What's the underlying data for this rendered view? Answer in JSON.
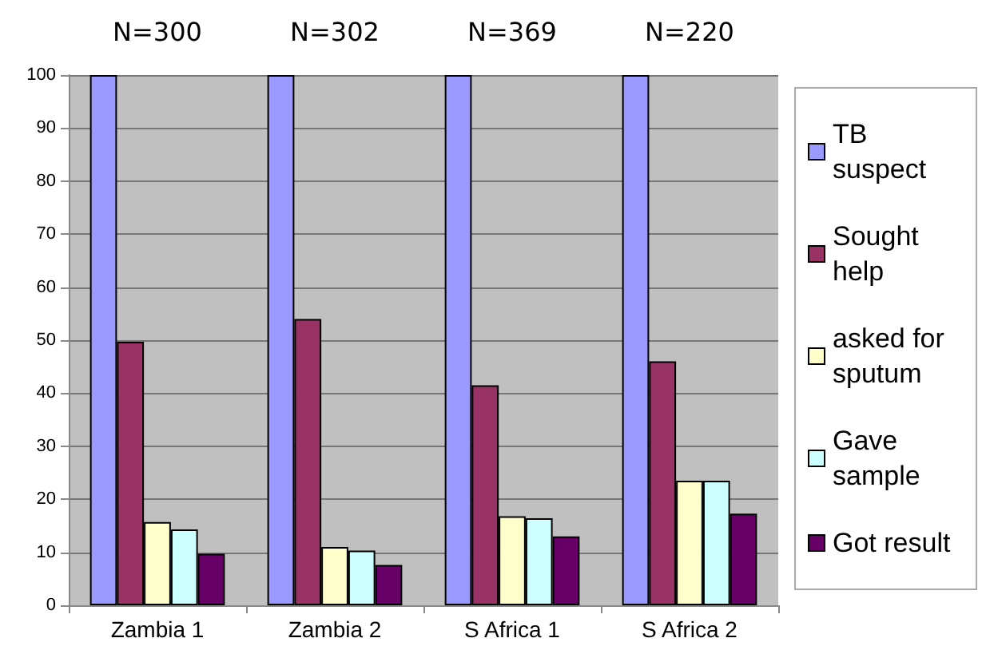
{
  "chart_data": {
    "type": "bar",
    "categories": [
      "Zambia 1",
      "Zambia 2",
      "S Africa 1",
      "S Africa 2"
    ],
    "series": [
      {
        "name": "TB suspect",
        "color": "#9999ff",
        "values": [
          100,
          100,
          100,
          100
        ]
      },
      {
        "name": "Sought help",
        "color": "#993366",
        "values": [
          49.7,
          54,
          41.5,
          46
        ]
      },
      {
        "name": "asked for sputum",
        "color": "#ffffcc",
        "values": [
          15.7,
          11,
          16.8,
          23.5
        ]
      },
      {
        "name": "Gave sample",
        "color": "#ccffff",
        "values": [
          14.3,
          10.3,
          16.4,
          23.5
        ]
      },
      {
        "name": "Got result",
        "color": "#660066",
        "values": [
          9.7,
          7.6,
          13,
          17.3
        ]
      }
    ],
    "annotations": [
      "N=300",
      "N=302",
      "N=369",
      "N=220"
    ],
    "ylim": [
      0,
      100
    ],
    "yticks": [
      0,
      10,
      20,
      30,
      40,
      50,
      60,
      70,
      80,
      90,
      100
    ],
    "grid": "y",
    "legend": "right"
  }
}
